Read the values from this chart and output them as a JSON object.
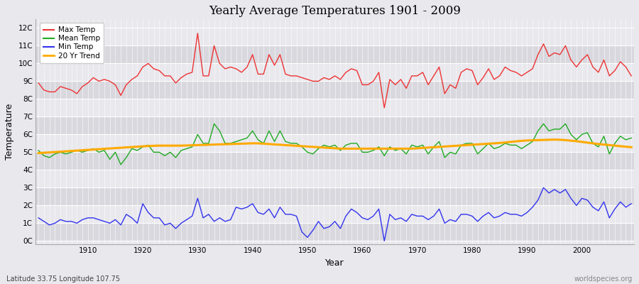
{
  "title": "Yearly Average Temperatures 1901 - 2009",
  "xlabel": "Year",
  "ylabel": "Temperature",
  "lat_lon_label": "Latitude 33.75 Longitude 107.75",
  "credit_label": "worldspecies.org",
  "years_start": 1901,
  "years_end": 2009,
  "yticks": [
    0,
    1,
    2,
    3,
    4,
    5,
    6,
    7,
    8,
    9,
    10,
    11,
    12
  ],
  "ytick_labels": [
    "0C",
    "1C",
    "2C",
    "3C",
    "4C",
    "5C",
    "6C",
    "7C",
    "8C",
    "9C",
    "10C",
    "11C",
    "12C"
  ],
  "ylim": [
    -0.2,
    12.5
  ],
  "xlim": [
    1900.5,
    2009.5
  ],
  "fig_bg": "#e8e8ed",
  "band_dark": "#d8d8de",
  "band_light": "#e8e8ed",
  "grid_color": "#ffffff",
  "max_temp_color": "#ee3333",
  "mean_temp_color": "#22aa22",
  "min_temp_color": "#3333ee",
  "trend_color": "#ffaa00",
  "legend_labels": [
    "Max Temp",
    "Mean Temp",
    "Min Temp",
    "20 Yr Trend"
  ],
  "xticks": [
    1910,
    1920,
    1930,
    1940,
    1950,
    1960,
    1970,
    1980,
    1990,
    2000
  ],
  "max_temp": [
    8.9,
    8.5,
    8.4,
    8.4,
    8.7,
    8.6,
    8.5,
    8.3,
    8.7,
    8.9,
    9.2,
    9.0,
    9.1,
    9.0,
    8.8,
    8.2,
    8.8,
    9.1,
    9.3,
    9.8,
    10.0,
    9.7,
    9.6,
    9.3,
    9.3,
    8.9,
    9.2,
    9.4,
    9.5,
    11.7,
    9.3,
    9.3,
    11.0,
    10.0,
    9.7,
    9.8,
    9.7,
    9.5,
    9.8,
    10.5,
    9.4,
    9.4,
    10.5,
    9.9,
    10.5,
    9.4,
    9.3,
    9.3,
    9.2,
    9.1,
    9.0,
    9.0,
    9.2,
    9.1,
    9.3,
    9.1,
    9.5,
    9.7,
    9.6,
    8.8,
    8.8,
    9.0,
    9.5,
    7.5,
    9.1,
    8.8,
    9.1,
    8.6,
    9.3,
    9.3,
    9.5,
    8.8,
    9.3,
    9.8,
    8.3,
    8.8,
    8.6,
    9.5,
    9.7,
    9.6,
    8.8,
    9.2,
    9.7,
    9.1,
    9.3,
    9.8,
    9.6,
    9.5,
    9.3,
    9.5,
    9.7,
    10.5,
    11.1,
    10.4,
    10.6,
    10.5,
    11.0,
    10.2,
    9.8,
    10.2,
    10.5,
    9.8,
    9.5,
    10.2,
    9.3,
    9.6,
    10.1,
    9.8,
    9.3
  ],
  "mean_temp": [
    5.1,
    4.8,
    4.7,
    4.9,
    5.0,
    4.9,
    5.0,
    5.1,
    5.0,
    5.1,
    5.2,
    5.0,
    5.1,
    4.6,
    5.0,
    4.3,
    4.7,
    5.2,
    5.1,
    5.3,
    5.4,
    5.0,
    5.0,
    4.8,
    5.0,
    4.7,
    5.1,
    5.2,
    5.3,
    6.0,
    5.5,
    5.5,
    6.6,
    6.2,
    5.5,
    5.5,
    5.6,
    5.7,
    5.8,
    6.2,
    5.7,
    5.5,
    6.2,
    5.6,
    6.2,
    5.6,
    5.5,
    5.5,
    5.3,
    5.0,
    4.9,
    5.2,
    5.4,
    5.3,
    5.4,
    5.1,
    5.4,
    5.5,
    5.5,
    5.0,
    5.0,
    5.1,
    5.3,
    4.8,
    5.3,
    5.1,
    5.2,
    4.9,
    5.4,
    5.3,
    5.4,
    4.9,
    5.3,
    5.6,
    4.7,
    5.0,
    4.9,
    5.4,
    5.5,
    5.5,
    4.9,
    5.2,
    5.5,
    5.2,
    5.3,
    5.5,
    5.4,
    5.4,
    5.2,
    5.4,
    5.6,
    6.2,
    6.6,
    6.2,
    6.3,
    6.3,
    6.6,
    6.0,
    5.7,
    6.0,
    6.1,
    5.5,
    5.3,
    5.9,
    4.9,
    5.5,
    5.9,
    5.7,
    5.8
  ],
  "min_temp": [
    1.3,
    1.1,
    0.9,
    1.0,
    1.2,
    1.1,
    1.1,
    1.0,
    1.2,
    1.3,
    1.3,
    1.2,
    1.1,
    1.0,
    1.2,
    0.9,
    1.5,
    1.3,
    1.0,
    2.1,
    1.6,
    1.3,
    1.3,
    0.9,
    1.0,
    0.7,
    1.0,
    1.2,
    1.4,
    2.4,
    1.3,
    1.5,
    1.1,
    1.3,
    1.1,
    1.2,
    1.9,
    1.8,
    1.9,
    2.1,
    1.6,
    1.5,
    1.8,
    1.3,
    1.9,
    1.5,
    1.5,
    1.4,
    0.5,
    0.2,
    0.6,
    1.1,
    0.7,
    0.8,
    1.1,
    0.7,
    1.4,
    1.8,
    1.6,
    1.3,
    1.2,
    1.4,
    1.8,
    0.0,
    1.5,
    1.2,
    1.3,
    1.1,
    1.5,
    1.4,
    1.4,
    1.2,
    1.4,
    1.8,
    1.0,
    1.2,
    1.1,
    1.5,
    1.5,
    1.4,
    1.1,
    1.4,
    1.6,
    1.3,
    1.4,
    1.6,
    1.5,
    1.5,
    1.4,
    1.6,
    1.9,
    2.3,
    3.0,
    2.7,
    2.9,
    2.7,
    2.9,
    2.4,
    2.0,
    2.4,
    2.3,
    1.9,
    1.7,
    2.2,
    1.3,
    1.8,
    2.2,
    1.9,
    2.1
  ],
  "trend_mean": [
    4.95,
    4.97,
    4.99,
    5.01,
    5.03,
    5.05,
    5.07,
    5.09,
    5.11,
    5.13,
    5.15,
    5.17,
    5.19,
    5.21,
    5.23,
    5.25,
    5.27,
    5.29,
    5.31,
    5.33,
    5.35,
    5.36,
    5.37,
    5.37,
    5.37,
    5.37,
    5.37,
    5.38,
    5.39,
    5.4,
    5.41,
    5.42,
    5.43,
    5.44,
    5.45,
    5.46,
    5.47,
    5.48,
    5.49,
    5.5,
    5.5,
    5.48,
    5.46,
    5.44,
    5.42,
    5.4,
    5.38,
    5.36,
    5.34,
    5.32,
    5.3,
    5.28,
    5.26,
    5.24,
    5.22,
    5.2,
    5.2,
    5.2,
    5.2,
    5.2,
    5.2,
    5.2,
    5.2,
    5.2,
    5.2,
    5.2,
    5.2,
    5.2,
    5.2,
    5.22,
    5.24,
    5.26,
    5.28,
    5.3,
    5.32,
    5.34,
    5.36,
    5.38,
    5.4,
    5.42,
    5.44,
    5.46,
    5.48,
    5.5,
    5.52,
    5.55,
    5.58,
    5.61,
    5.64,
    5.66,
    5.67,
    5.68,
    5.69,
    5.7,
    5.71,
    5.7,
    5.68,
    5.65,
    5.62,
    5.58,
    5.54,
    5.5,
    5.46,
    5.43,
    5.4,
    5.37,
    5.34,
    5.31,
    5.28
  ]
}
